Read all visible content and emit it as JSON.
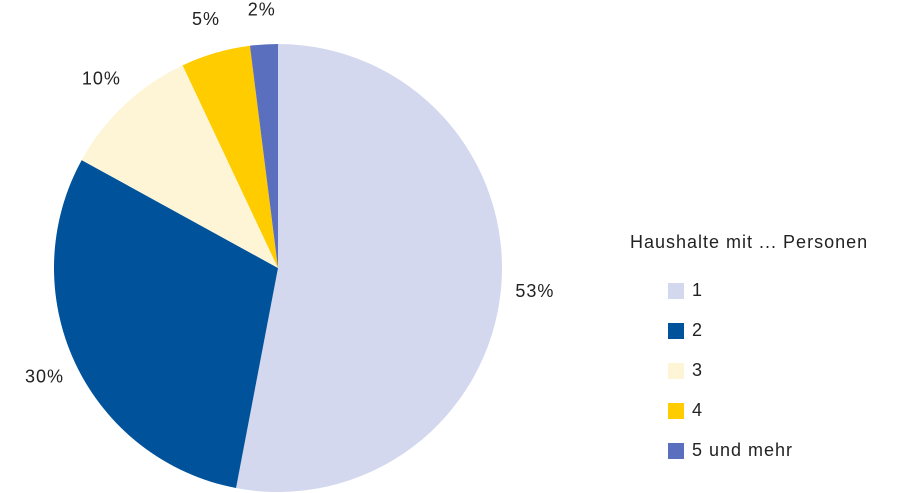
{
  "chart_data": {
    "type": "pie",
    "categories": [
      "1",
      "2",
      "3",
      "4",
      "5 und mehr"
    ],
    "values": [
      53,
      30,
      10,
      5,
      2
    ],
    "value_labels": [
      "53%",
      "30%",
      "10%",
      "5%",
      "2%"
    ],
    "colors": [
      "#d4d8ee",
      "#00529b",
      "#fdf5d6",
      "#ffcc00",
      "#5b6fbf"
    ],
    "legend_title": "Haushalte mit ... Personen",
    "legend": "right"
  }
}
